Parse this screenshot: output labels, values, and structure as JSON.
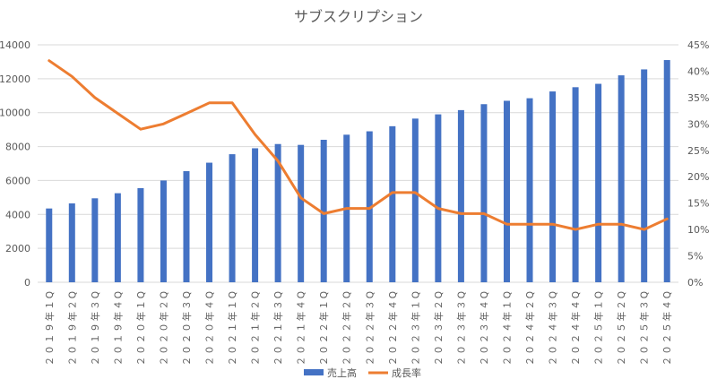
{
  "chart_data": {
    "type": "bar",
    "title": "サブスクリプション",
    "categories": [
      "２０１９年１Q",
      "２０１９年２Q",
      "２０１９年３Q",
      "２０１９年４Q",
      "２０２０年１Q",
      "２０２０年２Q",
      "２０２０年３Q",
      "２０２０年４Q",
      "２０２１年１Q",
      "２０２１年２Q",
      "２０２１年３Q",
      "２０２１年４Q",
      "２０２２年１Q",
      "２０２２年２Q",
      "２０２２年３Q",
      "２０２２年４Q",
      "２０２３年１Q",
      "２０２３年２Q",
      "２０２３年３Q",
      "２０２３年４Q",
      "２０２４年１Q",
      "２０２４年２Q",
      "２０２４年３Q",
      "２０２４年４Q",
      "２０２５年１Q",
      "２０２５年２Q",
      "２０２５年３Q",
      "２０２５年４Q"
    ],
    "series": [
      {
        "name": "売上高",
        "type": "bar",
        "axis": "left",
        "color": "#4472c4",
        "values": [
          4350,
          4650,
          4950,
          5250,
          5550,
          6000,
          6550,
          7050,
          7550,
          7900,
          8150,
          8100,
          8400,
          8700,
          8900,
          9200,
          9650,
          9900,
          10150,
          10500,
          10700,
          10850,
          11250,
          11500,
          11700,
          12200,
          12550,
          13100
        ]
      },
      {
        "name": "成長率",
        "type": "line",
        "axis": "right",
        "color": "#ed7d31",
        "values": [
          0.42,
          0.39,
          0.35,
          0.32,
          0.29,
          0.3,
          0.32,
          0.34,
          0.34,
          0.28,
          0.23,
          0.16,
          0.13,
          0.14,
          0.14,
          0.17,
          0.17,
          0.14,
          0.13,
          0.13,
          0.11,
          0.11,
          0.11,
          0.1,
          0.11,
          0.11,
          0.1,
          0.12
        ]
      }
    ],
    "y_left": {
      "min": 0,
      "max": 14000,
      "step": 2000,
      "ticks": [
        "0",
        "2000",
        "4000",
        "6000",
        "8000",
        "10000",
        "12000",
        "14000"
      ]
    },
    "y_right": {
      "min": 0,
      "max": 0.45,
      "step": 0.05,
      "ticks": [
        "0%",
        "5%",
        "10%",
        "15%",
        "20%",
        "25%",
        "30%",
        "35%",
        "40%",
        "45%"
      ]
    },
    "legend": {
      "position": "bottom",
      "items": [
        "売上高",
        "成長率"
      ]
    },
    "grid": true,
    "colors": {
      "grid": "#d9d9d9",
      "text": "#595959"
    }
  }
}
